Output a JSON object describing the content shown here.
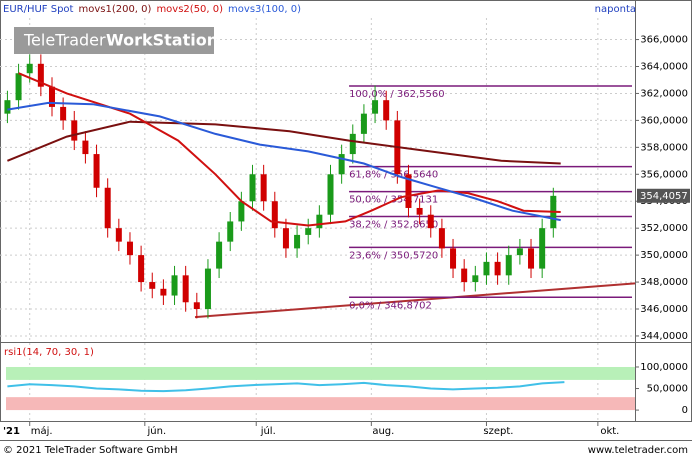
{
  "chart_data": [
    {
      "type": "candlestick",
      "legend": [
        {
          "name": "EUR/HUF Spot",
          "color": "#1f3fbf"
        },
        {
          "name": "movs1(200, 0)",
          "color": "#7a1010"
        },
        {
          "name": "movs2(50, 0)",
          "color": "#d01010"
        },
        {
          "name": "movs3(100, 0)",
          "color": "#2a5ad8"
        }
      ],
      "interval": "naponta",
      "watermark": {
        "brand": "TeleTrader",
        "product": "WorkStation"
      },
      "year_label": "'21",
      "xlim": [
        -8,
        163
      ],
      "xticks": [
        {
          "value": 0,
          "label": "máj."
        },
        {
          "value": 31,
          "label": "jún."
        },
        {
          "value": 61,
          "label": "júl."
        },
        {
          "value": 92,
          "label": "aug."
        },
        {
          "value": 123,
          "label": "szept."
        },
        {
          "value": 153,
          "label": "okt."
        }
      ],
      "ylim": [
        343.7,
        367.6
      ],
      "yticks": [
        {
          "value": 344,
          "label": "344,0000"
        },
        {
          "value": 346,
          "label": "346,0000"
        },
        {
          "value": 348,
          "label": "348,0000"
        },
        {
          "value": 350,
          "label": "350,0000"
        },
        {
          "value": 352,
          "label": "352,0000"
        },
        {
          "value": 354,
          "label": "354,0000"
        },
        {
          "value": 356,
          "label": "356,0000"
        },
        {
          "value": 358,
          "label": "358,0000"
        },
        {
          "value": 360,
          "label": "360,0000"
        },
        {
          "value": 362,
          "label": "362,0000"
        },
        {
          "value": 364,
          "label": "364,0000"
        },
        {
          "value": 366,
          "label": "366,0000"
        }
      ],
      "grid": true,
      "up_color": "#1a9a1a",
      "down_color": "#d00000",
      "candles": {
        "x": [
          -6,
          -3,
          0,
          3,
          6,
          9,
          12,
          15,
          18,
          21,
          24,
          27,
          30,
          33,
          36,
          39,
          42,
          45,
          48,
          51,
          54,
          57,
          60,
          63,
          66,
          69,
          72,
          75,
          78,
          81,
          84,
          87,
          90,
          93,
          96,
          99,
          102,
          105,
          108,
          111,
          114,
          117,
          120,
          123,
          126,
          129,
          132,
          135,
          138,
          141
        ],
        "open": [
          360.5,
          361.5,
          363.5,
          364.2,
          362.5,
          361,
          360,
          358.5,
          357.5,
          355,
          352,
          351,
          350,
          348,
          347.5,
          347,
          348.5,
          346.5,
          346,
          349,
          351,
          352.5,
          354,
          356,
          354,
          352,
          350.5,
          351.5,
          352,
          353,
          356,
          357.5,
          359,
          360.5,
          361.5,
          360,
          356,
          353.5,
          353,
          352,
          350.5,
          349,
          348,
          348.5,
          349.5,
          348.5,
          350,
          350.5,
          349,
          352
        ],
        "high": [
          362.2,
          364.2,
          364.9,
          364.9,
          363.2,
          361.7,
          360.7,
          359.2,
          358.2,
          355.7,
          352.7,
          351.7,
          350.7,
          348.7,
          348.2,
          349.2,
          349.2,
          347.2,
          349.7,
          351.7,
          353.2,
          354.7,
          356.7,
          356.7,
          354.7,
          352.7,
          352.2,
          352.7,
          353.7,
          356.7,
          358.2,
          359.7,
          361.2,
          362.6,
          362.2,
          360.7,
          356.7,
          354.2,
          353.7,
          352.7,
          351.2,
          349.7,
          349.2,
          350.2,
          350.2,
          350.7,
          351.2,
          351.2,
          352.7,
          355
        ],
        "low": [
          359.8,
          360.8,
          362.8,
          361.8,
          360.3,
          359.3,
          357.8,
          356.8,
          354.3,
          351.3,
          350.3,
          349.3,
          347.3,
          346.8,
          346.3,
          346.3,
          345.8,
          345.3,
          345.3,
          348.3,
          350.3,
          351.8,
          353.3,
          353.3,
          351.3,
          349.8,
          349.8,
          350.8,
          351.3,
          352.3,
          355.3,
          356.8,
          358.3,
          359.8,
          359.3,
          355.3,
          352.8,
          352.3,
          351.3,
          349.8,
          348.3,
          347.3,
          347.3,
          347.8,
          347.8,
          347.8,
          349.3,
          348.3,
          348.3,
          351.3
        ],
        "close": [
          361.5,
          363.5,
          364.2,
          362.5,
          361,
          360,
          358.5,
          357.5,
          355,
          352,
          351,
          350,
          348,
          347.5,
          347,
          348.5,
          346.5,
          346,
          349,
          351,
          352.5,
          354,
          356,
          354,
          352,
          350.5,
          351.5,
          352,
          353,
          356,
          357.5,
          359,
          360.5,
          361.5,
          360,
          356,
          353.5,
          353,
          352,
          350.5,
          349,
          348,
          348.5,
          349.5,
          348.5,
          350,
          350.5,
          349,
          352,
          354.4
        ]
      },
      "series": [
        {
          "color": "#7a1010",
          "x": [
            -6,
            10,
            27,
            50,
            70,
            86,
            105,
            127,
            143
          ],
          "values": [
            357,
            358.8,
            359.9,
            359.7,
            359.2,
            358.5,
            357.8,
            357,
            356.8
          ]
        },
        {
          "color": "#d01010",
          "x": [
            -3,
            10,
            27,
            40,
            50,
            57,
            65,
            75,
            85,
            92,
            100,
            110,
            118,
            126,
            133,
            143
          ],
          "values": [
            363.5,
            362,
            360.5,
            358.5,
            356,
            354,
            352.5,
            352.2,
            352.5,
            353.3,
            354.3,
            354.8,
            354.6,
            354,
            353.3,
            353.2
          ]
        },
        {
          "color": "#2a5ad8",
          "x": [
            -6,
            5,
            17,
            35,
            50,
            62,
            75,
            90,
            100,
            110,
            120,
            130,
            143
          ],
          "values": [
            360.8,
            361.3,
            361.2,
            360.3,
            359,
            358.2,
            357.7,
            356.8,
            355.8,
            355,
            354.2,
            353.3,
            352.6
          ]
        }
      ],
      "fib_levels": {
        "color": "#7a1a7a",
        "start_x": 86,
        "values": [
          362.556,
          356.564,
          354.7131,
          352.865,
          350.572,
          346.8702
        ],
        "value_labels": [
          "100,0% / 362,5560",
          "61,8% / 356,5640",
          "50,0% / 354,7131",
          "38,2% / 352,8650",
          "23,6% / 350,5720",
          "0,0% / 346,8702"
        ]
      },
      "trendline": {
        "color": "#b03030",
        "x": [
          44.5,
          163
        ],
        "values": [
          345.4,
          347.9
        ]
      },
      "last": {
        "value": 354.4057,
        "label": "354,4057"
      }
    },
    {
      "type": "line",
      "title": "rsi1(14, 70, 30, 1)",
      "xlim": [
        -8,
        163
      ],
      "ylim": [
        -23,
        151
      ],
      "yticks": [
        {
          "value": 100,
          "label": "100,0000"
        },
        {
          "value": 50,
          "label": "50,0000"
        },
        0
      ],
      "bands": [
        {
          "from": 70,
          "to": 100,
          "color": "#b8f0b8"
        },
        {
          "from": 0,
          "to": 30,
          "color": "#f6b8b8"
        }
      ],
      "series": [
        {
          "color": "#40c0e8",
          "x": [
            -6,
            0,
            6,
            12,
            18,
            24,
            30,
            36,
            42,
            48,
            54,
            60,
            66,
            72,
            78,
            84,
            90,
            96,
            102,
            108,
            114,
            120,
            126,
            132,
            138,
            144
          ],
          "values": [
            55,
            60,
            58,
            55,
            50,
            48,
            45,
            44,
            46,
            50,
            55,
            58,
            60,
            62,
            58,
            60,
            63,
            58,
            55,
            50,
            48,
            50,
            52,
            55,
            62,
            65
          ]
        }
      ]
    }
  ],
  "footer": {
    "copyright": "© 2021 TeleTrader Software GmbH",
    "url": "www.teletrader.com"
  }
}
